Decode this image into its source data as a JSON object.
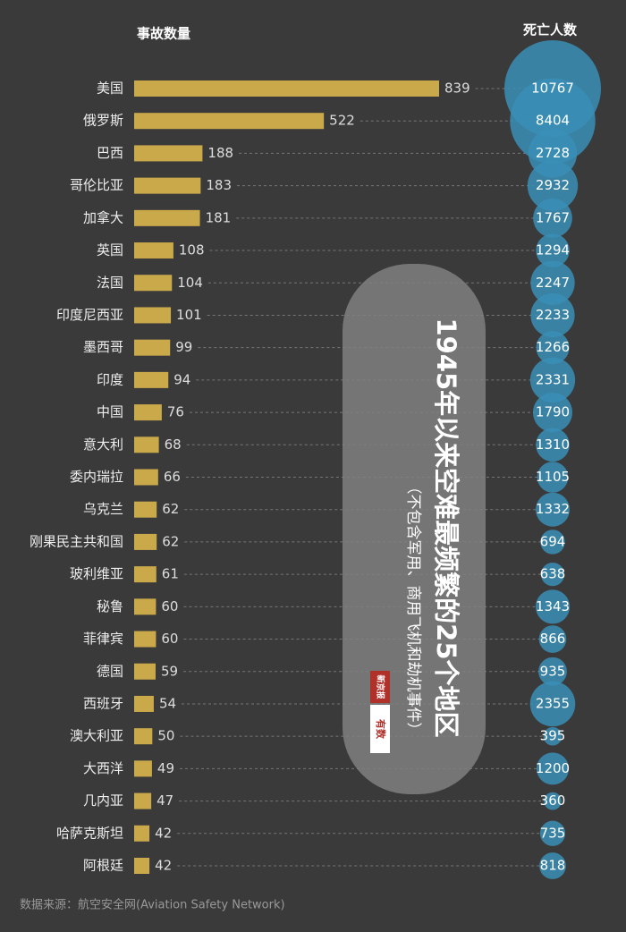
{
  "chart_data": {
    "type": "bar",
    "title": "1945年以来空难最频繁的25个地区",
    "subtitle": "（不包含军用、商用飞机和劫机事件）",
    "source": "数据来源：航空安全网(Aviation Safety Network)",
    "logo": [
      "新京报",
      "有数"
    ],
    "categories": [
      "美国",
      "俄罗斯",
      "巴西",
      "哥伦比亚",
      "加拿大",
      "英国",
      "法国",
      "印度尼西亚",
      "墨西哥",
      "印度",
      "中国",
      "意大利",
      "委内瑞拉",
      "乌克兰",
      "刚果民主共和国",
      "玻利维亚",
      "秘鲁",
      "菲律宾",
      "德国",
      "西班牙",
      "澳大利亚",
      "大西洋",
      "几内亚",
      "哈萨克斯坦",
      "阿根廷"
    ],
    "series": [
      {
        "name": "事故数量",
        "color": "#c9a94a",
        "values": [
          839,
          522,
          188,
          183,
          181,
          108,
          104,
          101,
          99,
          94,
          76,
          68,
          66,
          62,
          62,
          61,
          60,
          60,
          59,
          54,
          50,
          49,
          47,
          42,
          42
        ]
      },
      {
        "name": "死亡人数",
        "color": "#3a8fb7",
        "values": [
          10767,
          8404,
          2728,
          2932,
          1767,
          1294,
          2247,
          2233,
          1266,
          2331,
          1790,
          1310,
          1105,
          1332,
          694,
          638,
          1343,
          866,
          935,
          2355,
          395,
          1200,
          360,
          735,
          818
        ]
      }
    ]
  }
}
